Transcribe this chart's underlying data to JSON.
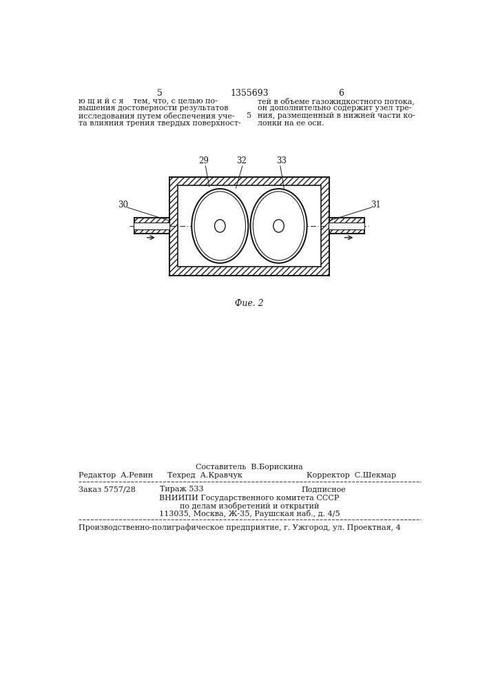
{
  "page_bg": "#ffffff",
  "text_color": "#1a1a1a",
  "page_number_left": "5",
  "page_number_right": "6",
  "patent_number": "1355693",
  "fig_caption": "Фие. 2",
  "label_29": "29",
  "label_30": "30",
  "label_31": "31",
  "label_32": "32",
  "label_33": "33",
  "footer_sestavitel": "Составитель  В.Борискина",
  "footer_redaktor": "Редактор  А.Ревин",
  "footer_tehred": "Техред  А.Кравчук",
  "footer_korrektor": "Корректор  С.Шекмар",
  "footer_zakaz": "Заказ 5757/28",
  "footer_tirazh": "Тираж 533",
  "footer_podpisnoe": "Подписное",
  "footer_vniiipi": "ВНИИПИ Государственного комитета СССР",
  "footer_po_delam": "по делам изобретений и открытий",
  "footer_address": "113035, Москва, Ж-35, Раушская наб., д. 4/5",
  "footer_proizv": "Производственно-полиграфическое предприятие, г. Ужгород, ул. Проектная, 4"
}
